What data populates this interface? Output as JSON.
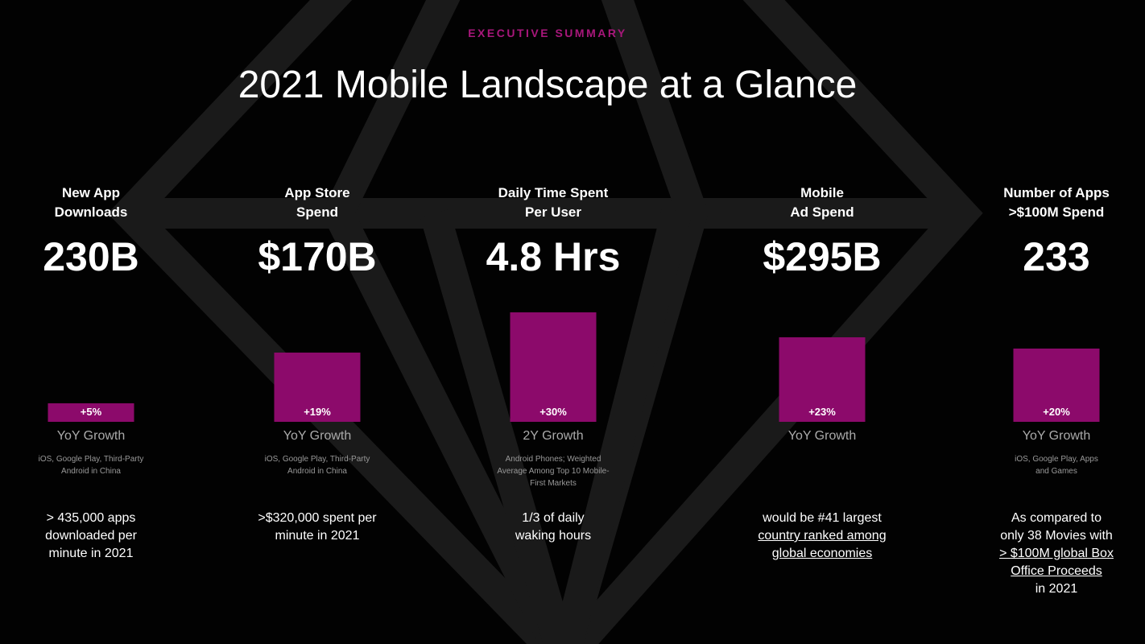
{
  "colors": {
    "accent": "#8c0a6b",
    "kicker": "#a8177b",
    "diamond": "#1a1a1a"
  },
  "kicker": "EXECUTIVE SUMMARY",
  "title": "2021 Mobile Landscape at a Glance",
  "chart_data": {
    "type": "bar",
    "categories": [
      "New App Downloads",
      "App Store Spend",
      "Daily Time Spent Per User",
      "Mobile Ad Spend",
      "Number of Apps >$100M Spend"
    ],
    "values": [
      5,
      19,
      30,
      23,
      20
    ],
    "unit": "%"
  },
  "metrics": [
    {
      "head1": "New App",
      "head2": "Downloads",
      "value": "230B",
      "growth": "+5%",
      "growth_pct": 5,
      "growth_label": "YoY Growth",
      "note1": "iOS, Google Play, Third-Party",
      "note2": "Android in China",
      "note3": "",
      "d1": "> 435,000 apps",
      "d2": "downloaded per",
      "d3": "minute in 2021",
      "d4": "",
      "d5": ""
    },
    {
      "head1": "App Store",
      "head2": "Spend",
      "value": "$170B",
      "growth": "+19%",
      "growth_pct": 19,
      "growth_label": "YoY Growth",
      "note1": "iOS, Google Play, Third-Party",
      "note2": "Android in China",
      "note3": "",
      "d1": ">$320,000 spent per",
      "d2": "minute in 2021",
      "d3": "",
      "d4": "",
      "d5": ""
    },
    {
      "head1": "Daily Time Spent",
      "head2": "Per User",
      "value": "4.8 Hrs",
      "growth": "+30%",
      "growth_pct": 30,
      "growth_label": "2Y Growth",
      "note1": "Android Phones; Weighted",
      "note2": "Average Among Top 10 Mobile-",
      "note3": "First Markets",
      "d1": "1/3 of daily",
      "d2": "waking hours",
      "d3": "",
      "d4": "",
      "d5": ""
    },
    {
      "head1": "Mobile",
      "head2": "Ad Spend",
      "value": "$295B",
      "growth": "+23%",
      "growth_pct": 23,
      "growth_label": "YoY Growth",
      "note1": "",
      "note2": "",
      "note3": "",
      "d1": "would be #41 largest",
      "d2": "country ranked among",
      "d3": "global economies",
      "d4": "",
      "d5": ""
    },
    {
      "head1": "Number of Apps",
      "head2": ">$100M Spend",
      "value": "233",
      "growth": "+20%",
      "growth_pct": 20,
      "growth_label": "YoY Growth",
      "note1": "iOS, Google Play, Apps",
      "note2": "and Games",
      "note3": "",
      "d1": "As compared to",
      "d2": "only 38 Movies with",
      "d3": "> $100M global Box",
      "d4": "Office Proceeds",
      "d5": "in 2021"
    }
  ]
}
